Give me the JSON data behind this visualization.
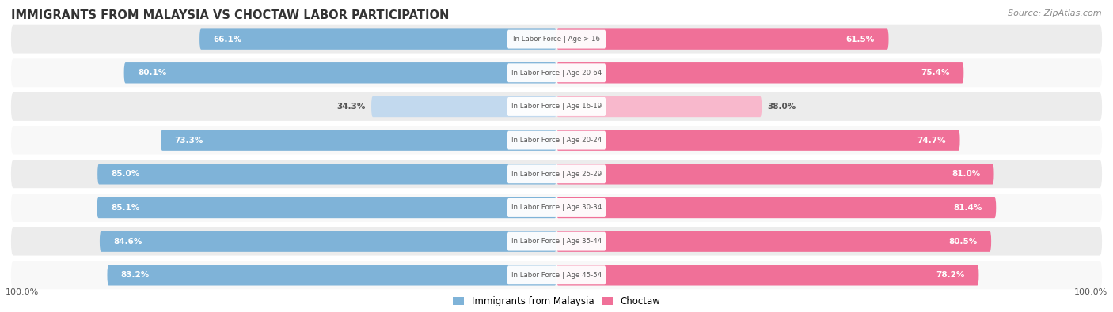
{
  "title": "IMMIGRANTS FROM MALAYSIA VS CHOCTAW LABOR PARTICIPATION",
  "source": "Source: ZipAtlas.com",
  "categories": [
    "In Labor Force | Age > 16",
    "In Labor Force | Age 20-64",
    "In Labor Force | Age 16-19",
    "In Labor Force | Age 20-24",
    "In Labor Force | Age 25-29",
    "In Labor Force | Age 30-34",
    "In Labor Force | Age 35-44",
    "In Labor Force | Age 45-54"
  ],
  "malaysia_values": [
    66.1,
    80.1,
    34.3,
    73.3,
    85.0,
    85.1,
    84.6,
    83.2
  ],
  "choctaw_values": [
    61.5,
    75.4,
    38.0,
    74.7,
    81.0,
    81.4,
    80.5,
    78.2
  ],
  "malaysia_color": "#7fb3d8",
  "malaysia_color_light": "#c2d9ee",
  "choctaw_color": "#f07098",
  "choctaw_color_light": "#f8b8cc",
  "row_bg_even": "#ececec",
  "row_bg_odd": "#f8f8f8",
  "label_color_white": "#ffffff",
  "label_color_dark": "#555555",
  "center_label_color": "#555555",
  "max_val": 100.0,
  "legend_malaysia": "Immigrants from Malaysia",
  "legend_choctaw": "Choctaw",
  "bottom_left": "100.0%",
  "bottom_right": "100.0%",
  "small_threshold": 50
}
